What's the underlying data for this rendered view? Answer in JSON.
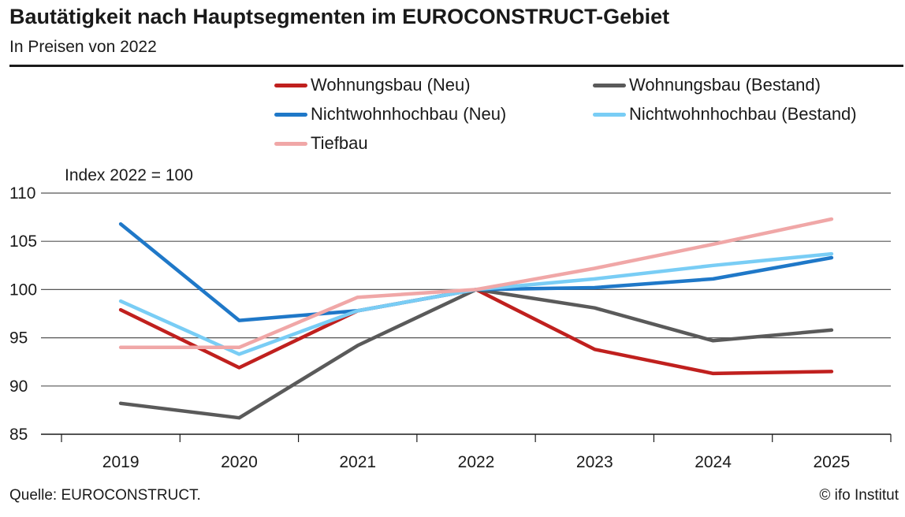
{
  "header": {
    "title": "Bautätigkeit nach Hauptsegmenten  im EUROCONSTRUCT-Gebiet",
    "subtitle": "In Preisen von 2022"
  },
  "footer": {
    "source": "Quelle: EUROCONSTRUCT.",
    "copyright": "© ifo Institut"
  },
  "chart_data": {
    "type": "line",
    "title": "Bautätigkeit nach Hauptsegmenten  im EUROCONSTRUCT-Gebiet",
    "subtitle": "In Preisen von 2022",
    "ylabel": "Index 2022 = 100",
    "xlabel": "",
    "x": [
      "2019",
      "2020",
      "2021",
      "2022",
      "2023",
      "2024",
      "2025"
    ],
    "ylim": [
      85,
      110
    ],
    "yticks": [
      85,
      90,
      95,
      100,
      105,
      110
    ],
    "grid": true,
    "legend_position": "top",
    "series": [
      {
        "name": "Wohnungsbau (Neu)",
        "color": "#c0201e",
        "values": [
          97.9,
          91.9,
          97.8,
          100,
          93.8,
          91.3,
          91.5
        ]
      },
      {
        "name": "Wohnungsbau (Bestand)",
        "color": "#5a5a5a",
        "values": [
          88.2,
          86.7,
          94.2,
          100,
          98.1,
          94.7,
          95.8
        ]
      },
      {
        "name": "Nichtwohnhochbau (Neu)",
        "color": "#1f78c8",
        "values": [
          106.8,
          96.8,
          97.8,
          100,
          100.2,
          101.1,
          103.3
        ]
      },
      {
        "name": "Nichtwohnhochbau (Bestand)",
        "color": "#79cdf5",
        "values": [
          98.8,
          93.3,
          97.8,
          100,
          101.1,
          102.5,
          103.7
        ]
      },
      {
        "name": "Tiefbau",
        "color": "#f0a7a7",
        "values": [
          94.0,
          94.0,
          99.2,
          100,
          102.2,
          104.7,
          107.3
        ]
      }
    ]
  }
}
